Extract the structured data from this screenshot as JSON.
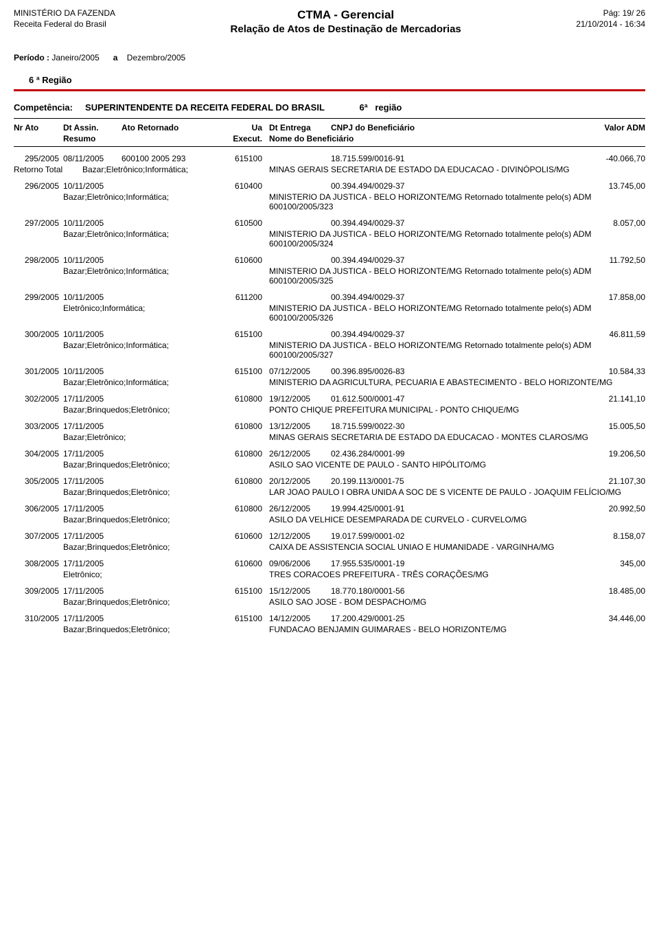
{
  "header": {
    "ministry": "MINISTÉRIO DA FAZENDA",
    "agency": "Receita Federal do Brasil",
    "title": "CTMA - Gerencial",
    "subtitle": "Relação de Atos de Destinação de Mercadorias",
    "page_label": "Pág:",
    "page_cur": "19",
    "page_sep": "/",
    "page_total": "26",
    "datetime": "21/10/2014 - 16:34"
  },
  "periodo": {
    "label": "Período :",
    "start": "Janeiro/2005",
    "a": "a",
    "end": "Dezembro/2005"
  },
  "regiao_title": "6 ª Região",
  "competencia": {
    "label": "Competência:",
    "value": "SUPERINTENDENTE DA RECEITA FEDERAL DO BRASIL",
    "reg": "6ª",
    "reg_word": "região"
  },
  "cols": {
    "nr": "Nr Ato",
    "dt_assin": "Dt Assin.",
    "ato_ret": "Ato Retornado",
    "ua": "Ua",
    "dt_entrega": "Dt Entrega",
    "cnpj": "CNPJ do Beneficiário",
    "valor": "Valor ADM",
    "resumo": "Resumo",
    "execut": "Execut.",
    "nome": "Nome do Beneficiário"
  },
  "retorno_label": "Retorno Total",
  "rows": [
    {
      "nr": "295/2005",
      "dt": "08/11/2005",
      "ato": "600100 2005 293",
      "ua": "615100",
      "entrega": "",
      "cnpj": "18.715.599/0016-91",
      "valor": "-40.066,70",
      "resumo_prefix": "Retorno Total",
      "resumo": "Bazar;Eletrônico;Informática;",
      "nome": "MINAS GERAIS SECRETARIA DE ESTADO DA EDUCACAO - DIVINÓPOLIS/MG"
    },
    {
      "nr": "296/2005",
      "dt": "10/11/2005",
      "ato": "",
      "ua": "610400",
      "entrega": "",
      "cnpj": "00.394.494/0029-37",
      "valor": "13.745,00",
      "resumo": "Bazar;Eletrônico;Informática;",
      "nome": "MINISTERIO DA JUSTICA - BELO HORIZONTE/MG Retornado totalmente pelo(s) ADM 600100/2005/323"
    },
    {
      "nr": "297/2005",
      "dt": "10/11/2005",
      "ato": "",
      "ua": "610500",
      "entrega": "",
      "cnpj": "00.394.494/0029-37",
      "valor": "8.057,00",
      "resumo": "Bazar;Eletrônico;Informática;",
      "nome": "MINISTERIO DA JUSTICA - BELO HORIZONTE/MG Retornado totalmente pelo(s) ADM 600100/2005/324"
    },
    {
      "nr": "298/2005",
      "dt": "10/11/2005",
      "ato": "",
      "ua": "610600",
      "entrega": "",
      "cnpj": "00.394.494/0029-37",
      "valor": "11.792,50",
      "resumo": "Bazar;Eletrônico;Informática;",
      "nome": "MINISTERIO DA JUSTICA - BELO HORIZONTE/MG Retornado totalmente pelo(s) ADM 600100/2005/325"
    },
    {
      "nr": "299/2005",
      "dt": "10/11/2005",
      "ato": "",
      "ua": "611200",
      "entrega": "",
      "cnpj": "00.394.494/0029-37",
      "valor": "17.858,00",
      "resumo": "Eletrônico;Informática;",
      "nome": "MINISTERIO DA JUSTICA - BELO HORIZONTE/MG Retornado totalmente pelo(s) ADM 600100/2005/326"
    },
    {
      "nr": "300/2005",
      "dt": "10/11/2005",
      "ato": "",
      "ua": "615100",
      "entrega": "",
      "cnpj": "00.394.494/0029-37",
      "valor": "46.811,59",
      "resumo": "Bazar;Eletrônico;Informática;",
      "nome": "MINISTERIO DA JUSTICA - BELO HORIZONTE/MG Retornado totalmente pelo(s) ADM 600100/2005/327"
    },
    {
      "nr": "301/2005",
      "dt": "10/11/2005",
      "ato": "",
      "ua": "615100",
      "entrega": "07/12/2005",
      "cnpj": "00.396.895/0026-83",
      "valor": "10.584,33",
      "resumo": "Bazar;Eletrônico;Informática;",
      "nome": "MINISTERIO DA AGRICULTURA, PECUARIA E ABASTECIMENTO - BELO HORIZONTE/MG"
    },
    {
      "nr": "302/2005",
      "dt": "17/11/2005",
      "ato": "",
      "ua": "610800",
      "entrega": "19/12/2005",
      "cnpj": "01.612.500/0001-47",
      "valor": "21.141,10",
      "resumo": "Bazar;Brinquedos;Eletrônico;",
      "nome": "PONTO CHIQUE PREFEITURA MUNICIPAL - PONTO CHIQUE/MG"
    },
    {
      "nr": "303/2005",
      "dt": "17/11/2005",
      "ato": "",
      "ua": "610800",
      "entrega": "13/12/2005",
      "cnpj": "18.715.599/0022-30",
      "valor": "15.005,50",
      "resumo": "Bazar;Eletrônico;",
      "nome": "MINAS GERAIS SECRETARIA DE ESTADO DA EDUCACAO - MONTES CLAROS/MG"
    },
    {
      "nr": "304/2005",
      "dt": "17/11/2005",
      "ato": "",
      "ua": "610800",
      "entrega": "26/12/2005",
      "cnpj": "02.436.284/0001-99",
      "valor": "19.206,50",
      "resumo": "Bazar;Brinquedos;Eletrônico;",
      "nome": "ASILO SAO VICENTE DE PAULO - SANTO HIPÓLITO/MG"
    },
    {
      "nr": "305/2005",
      "dt": "17/11/2005",
      "ato": "",
      "ua": "610800",
      "entrega": "20/12/2005",
      "cnpj": "20.199.113/0001-75",
      "valor": "21.107,30",
      "resumo": "Bazar;Brinquedos;Eletrônico;",
      "nome": "LAR JOAO PAULO I OBRA UNIDA A SOC DE S VICENTE DE PAULO - JOAQUIM FELÍCIO/MG"
    },
    {
      "nr": "306/2005",
      "dt": "17/11/2005",
      "ato": "",
      "ua": "610800",
      "entrega": "26/12/2005",
      "cnpj": "19.994.425/0001-91",
      "valor": "20.992,50",
      "resumo": "Bazar;Brinquedos;Eletrônico;",
      "nome": "ASILO DA VELHICE DESEMPARADA DE CURVELO - CURVELO/MG"
    },
    {
      "nr": "307/2005",
      "dt": "17/11/2005",
      "ato": "",
      "ua": "610600",
      "entrega": "12/12/2005",
      "cnpj": "19.017.599/0001-02",
      "valor": "8.158,07",
      "resumo": "Bazar;Brinquedos;Eletrônico;",
      "nome": "CAIXA DE ASSISTENCIA SOCIAL UNIAO E HUMANIDADE - VARGINHA/MG"
    },
    {
      "nr": "308/2005",
      "dt": "17/11/2005",
      "ato": "",
      "ua": "610600",
      "entrega": "09/06/2006",
      "cnpj": "17.955.535/0001-19",
      "valor": "345,00",
      "resumo": "Eletrônico;",
      "nome": "TRES CORACOES PREFEITURA - TRÊS CORAÇÕES/MG"
    },
    {
      "nr": "309/2005",
      "dt": "17/11/2005",
      "ato": "",
      "ua": "615100",
      "entrega": "15/12/2005",
      "cnpj": "18.770.180/0001-56",
      "valor": "18.485,00",
      "resumo": "Bazar;Brinquedos;Eletrônico;",
      "nome": "ASILO SAO JOSE - BOM DESPACHO/MG"
    },
    {
      "nr": "310/2005",
      "dt": "17/11/2005",
      "ato": "",
      "ua": "615100",
      "entrega": "14/12/2005",
      "cnpj": "17.200.429/0001-25",
      "valor": "34.446,00",
      "resumo": "Bazar;Brinquedos;Eletrônico;",
      "nome": "FUNDACAO BENJAMIN GUIMARAES - BELO HORIZONTE/MG"
    }
  ]
}
